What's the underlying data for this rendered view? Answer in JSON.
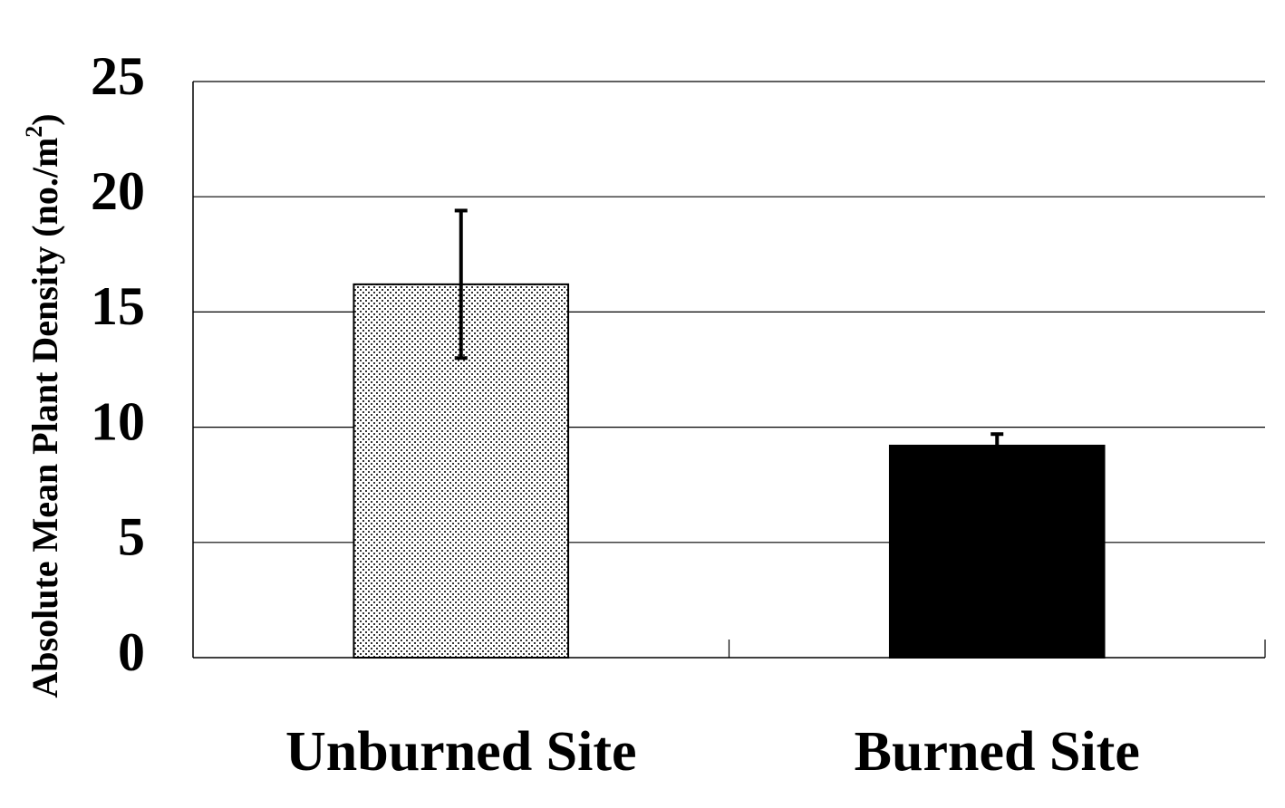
{
  "chart_data": {
    "type": "bar",
    "title": "",
    "xlabel": "",
    "ylabel": {
      "main": "Absolute Mean Plant Density (no./m",
      "superscript": "2",
      "close": ")"
    },
    "categories": [
      "Unburned Site",
      "Burned Site"
    ],
    "values": [
      16.2,
      9.2
    ],
    "error_bars": [
      3.2,
      0.5
    ],
    "bar_fills": [
      "dotted-pattern",
      "#000000"
    ],
    "ylim": [
      0,
      25
    ],
    "yticks": [
      0,
      5,
      10,
      15,
      20,
      25
    ],
    "grid": true,
    "legend": "none"
  }
}
